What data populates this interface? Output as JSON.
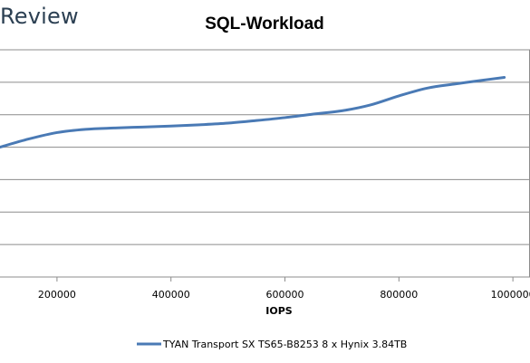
{
  "watermark": "Review",
  "chart_data": {
    "type": "line",
    "title": "SQL-Workload",
    "xlabel": "IOPS",
    "ylabel": "",
    "xlim": [
      100000,
      1030000
    ],
    "ylim": [
      0,
      7
    ],
    "x_ticks": [
      200000,
      400000,
      600000,
      800000,
      1000000
    ],
    "x_tick_labels": [
      "200000",
      "400000",
      "600000",
      "800000",
      "1000000"
    ],
    "y_gridlines": [
      0,
      1,
      2,
      3,
      4,
      5,
      6,
      7
    ],
    "y_tick_labels": [],
    "legend_position": "bottom",
    "grid": true,
    "series": [
      {
        "name": "TYAN Transport SX TS65-B8253 8 x Hynix 3.84TB",
        "color": "#4a7ab5",
        "x": [
          100000,
          150000,
          200000,
          250000,
          300000,
          350000,
          400000,
          450000,
          500000,
          550000,
          600000,
          650000,
          700000,
          750000,
          800000,
          850000,
          900000,
          950000,
          985000
        ],
        "y": [
          4.0,
          4.25,
          4.45,
          4.55,
          4.59,
          4.62,
          4.65,
          4.69,
          4.74,
          4.82,
          4.91,
          5.02,
          5.12,
          5.3,
          5.58,
          5.82,
          5.95,
          6.07,
          6.15
        ]
      }
    ]
  }
}
